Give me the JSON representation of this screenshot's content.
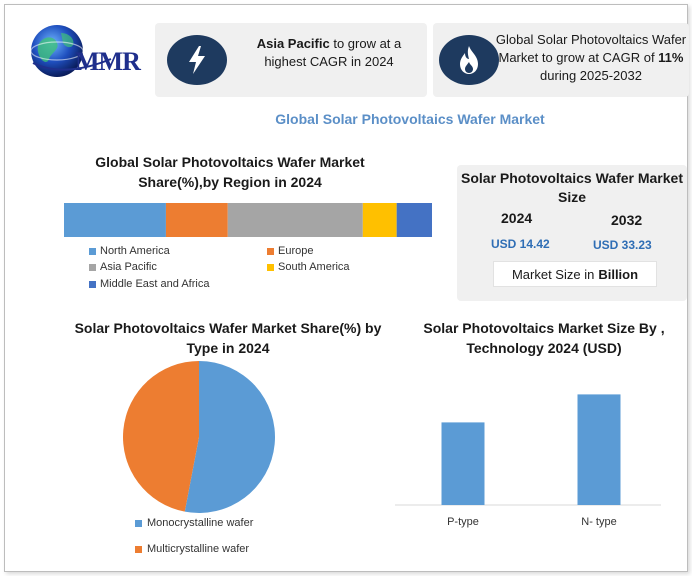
{
  "brand": {
    "logo_text": "MMR"
  },
  "highlights": [
    {
      "bold": "Asia Pacific",
      "text": " to grow at a highest CAGR in 2024",
      "icon": "lightning-icon"
    },
    {
      "pre": "Global Solar Photovoltaics Wafer Market to grow at CAGR of ",
      "bold": "11%",
      "post": " during 2025-2032",
      "icon": "flame-icon"
    }
  ],
  "main_title": "Global Solar Photovoltaics Wafer Market",
  "market_size": {
    "title": "Solar Photovoltaics Wafer Market Size",
    "years": [
      {
        "year": "2024",
        "value": "USD 14.42"
      },
      {
        "year": "2032",
        "value": "USD 33.23"
      }
    ],
    "unit_prefix": "Market Size in",
    "unit_bold": "Billion"
  },
  "colors": {
    "north_america": "#5b9bd5",
    "europe": "#ed7d31",
    "asia_pacific": "#a5a5a5",
    "south_america": "#ffc000",
    "mea": "#4472c4",
    "monocrystalline": "#5b9bd5",
    "multicrystalline": "#ed7d31",
    "badge": "#1e3a5f"
  },
  "chart_data": [
    {
      "type": "bar",
      "orientation": "horizontal-stacked",
      "title": "Global Solar Photovoltaics Wafer Market Share(%),by Region in 2024",
      "series": [
        {
          "name": "North America",
          "value": 27.7
        },
        {
          "name": "Europe",
          "value": 16.8
        },
        {
          "name": "Asia Pacific",
          "value": 36.7
        },
        {
          "name": "South America",
          "value": 9.2
        },
        {
          "name": "Middle East and Africa",
          "value": 9.6
        }
      ],
      "legend": "bottom"
    },
    {
      "type": "pie",
      "title": "Solar Photovoltaics Wafer Market Share(%) by Type  in 2024",
      "slices": [
        {
          "name": "Monocrystalline wafer",
          "value": 53
        },
        {
          "name": "Multicrystalline wafer",
          "value": 47
        }
      ],
      "legend": "bottom"
    },
    {
      "type": "bar",
      "title": "Solar Photovoltaics Market Size By , Technology  2024  (USD)",
      "categories": [
        "P-type",
        "N- type"
      ],
      "values": [
        5.9,
        7.9
      ],
      "ylim": [
        0,
        10
      ],
      "grid": false
    }
  ]
}
